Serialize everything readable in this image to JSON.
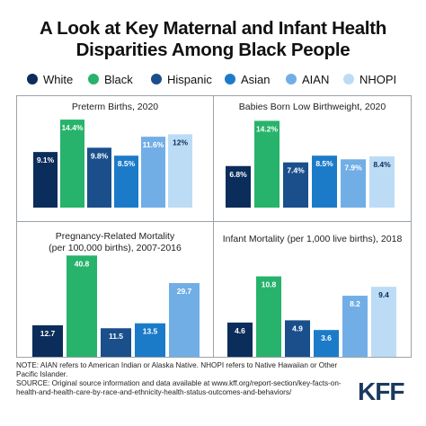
{
  "title_line1": "A Look at Key Maternal and Infant Health",
  "title_line2": "Disparities Among Black People",
  "legend": [
    {
      "label": "White",
      "color": "#0b2d5b"
    },
    {
      "label": "Black",
      "color": "#27b36b"
    },
    {
      "label": "Hispanic",
      "color": "#1a4f8c"
    },
    {
      "label": "Asian",
      "color": "#1c7bc9"
    },
    {
      "label": "AIAN",
      "color": "#72aee6"
    },
    {
      "label": "NHOPI",
      "color": "#bcdcf6"
    }
  ],
  "chart_data": [
    {
      "type": "bar",
      "title": "Preterm Births, 2020",
      "categories": [
        "White",
        "Black",
        "Hispanic",
        "Asian",
        "AIAN",
        "NHOPI"
      ],
      "values": [
        9.1,
        14.4,
        9.8,
        8.5,
        11.6,
        12
      ],
      "labels": [
        "9.1%",
        "14.4%",
        "9.8%",
        "8.5%",
        "11.6%",
        "12%"
      ]
    },
    {
      "type": "bar",
      "title": "Babies Born Low Birthweight, 2020",
      "categories": [
        "White",
        "Black",
        "Hispanic",
        "Asian",
        "AIAN",
        "NHOPI"
      ],
      "values": [
        6.8,
        14.2,
        7.4,
        8.5,
        7.9,
        8.4
      ],
      "labels": [
        "6.8%",
        "14.2%",
        "7.4%",
        "8.5%",
        "7.9%",
        "8.4%"
      ]
    },
    {
      "type": "bar",
      "title": "Pregnancy-Related Mortality\n(per 100,000 births), 2007-2016",
      "categories": [
        "White",
        "Black",
        "Hispanic",
        "Asian",
        "AIAN"
      ],
      "values": [
        12.7,
        40.8,
        11.5,
        13.5,
        29.7
      ],
      "labels": [
        "12.7",
        "40.8",
        "11.5",
        "13.5",
        "29.7"
      ]
    },
    {
      "type": "bar",
      "title": "Infant Mortality (per 1,000 live births), 2018",
      "categories": [
        "White",
        "Black",
        "Hispanic",
        "Asian",
        "AIAN",
        "NHOPI"
      ],
      "values": [
        4.6,
        10.8,
        4.9,
        3.6,
        8.2,
        9.4
      ],
      "labels": [
        "4.6",
        "10.8",
        "4.9",
        "3.6",
        "8.2",
        "9.4"
      ]
    }
  ],
  "footer": {
    "note": "NOTE: AIAN refers to American Indian or Alaska Native. NHOPI refers to Native Hawaiian or Other Pacific Islander.",
    "source": "SOURCE: Original source information and data available at www.kff.org/report-section/key-facts-on-health-and-health-care-by-race-and-ethnicity-health-status-outcomes-and-behaviors/"
  },
  "logo": "KFF"
}
